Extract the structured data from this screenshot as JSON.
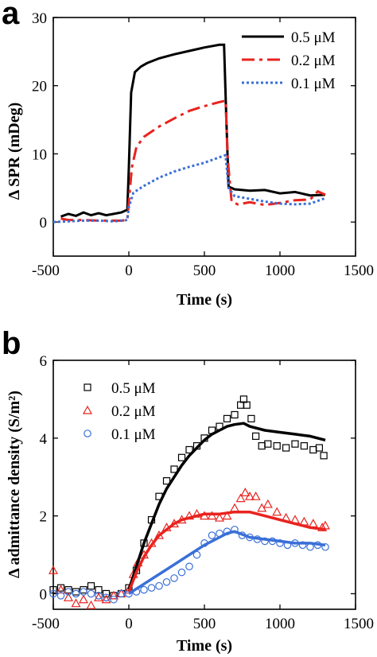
{
  "chart_data": [
    {
      "panel": "a",
      "type": "line",
      "xlabel": "Time (s)",
      "ylabel": "Δ SPR (mDeg)",
      "xlim": [
        -500,
        1500
      ],
      "ylim": [
        -5,
        30
      ],
      "xticks": [
        -500,
        0,
        500,
        1000,
        1500
      ],
      "yticks": [
        0,
        10,
        20,
        30
      ],
      "legend_position": "top-right",
      "series": [
        {
          "name": "0.5 μM",
          "color": "#000000",
          "style": "solid",
          "x": [
            -450,
            -400,
            -350,
            -300,
            -250,
            -200,
            -150,
            -100,
            -50,
            -10,
            0,
            15,
            40,
            80,
            120,
            200,
            300,
            400,
            500,
            600,
            630,
            645,
            660,
            700,
            800,
            900,
            1000,
            1100,
            1200,
            1300
          ],
          "y": [
            0.8,
            1.2,
            0.9,
            1.4,
            1.0,
            1.3,
            1.0,
            1.2,
            1.4,
            1.8,
            8,
            19,
            22,
            22.8,
            23.3,
            24,
            24.6,
            25.1,
            25.6,
            26.0,
            26.0,
            15,
            5.2,
            4.8,
            4.6,
            4.7,
            4.2,
            4.4,
            3.9,
            4.0
          ]
        },
        {
          "name": "0.2 μM",
          "color": "#e8231f",
          "style": "dashdot",
          "x": [
            -450,
            -400,
            -300,
            -200,
            -100,
            -50,
            -10,
            0,
            20,
            50,
            100,
            200,
            300,
            400,
            500,
            600,
            640,
            655,
            680,
            720,
            800,
            900,
            1000,
            1100,
            1200,
            1250,
            1300
          ],
          "y": [
            0.5,
            0.3,
            0.3,
            0.2,
            0.2,
            0.2,
            0.3,
            3,
            8,
            11,
            12.5,
            14,
            15.2,
            16.3,
            17.0,
            17.6,
            17.8,
            9,
            3.0,
            2.6,
            2.9,
            2.5,
            2.8,
            3.2,
            3.3,
            4.5,
            4.0
          ]
        },
        {
          "name": "0.1 μM",
          "color": "#3a6fd8",
          "style": "dotted",
          "x": [
            -500,
            -400,
            -300,
            -200,
            -100,
            -50,
            -10,
            0,
            30,
            100,
            200,
            300,
            400,
            500,
            600,
            640,
            660,
            700,
            800,
            900,
            1000,
            1100,
            1200,
            1300
          ],
          "y": [
            0.0,
            0.1,
            0.2,
            0.2,
            0.1,
            0.2,
            0.3,
            2.2,
            4.3,
            5.3,
            6.5,
            7.4,
            8.1,
            8.7,
            9.5,
            9.8,
            5.0,
            3.8,
            3.4,
            3.0,
            2.7,
            2.6,
            2.7,
            3.5
          ]
        }
      ]
    },
    {
      "panel": "b",
      "type": "scatter",
      "xlabel": "Time (s)",
      "ylabel": "Δ admittance density (S/m²)",
      "xlim": [
        -500,
        1500
      ],
      "ylim": [
        -0.4,
        6
      ],
      "xticks": [
        -500,
        0,
        500,
        1000,
        1500
      ],
      "yticks": [
        0,
        2,
        4,
        6
      ],
      "legend_position": "top-left",
      "series": [
        {
          "name": "0.5 μM",
          "color": "#000000",
          "marker": "square",
          "points_x": [
            -500,
            -450,
            -400,
            -350,
            -300,
            -250,
            -200,
            -150,
            -100,
            -50,
            0,
            50,
            100,
            150,
            200,
            250,
            300,
            350,
            400,
            450,
            500,
            550,
            600,
            650,
            700,
            740,
            760,
            780,
            810,
            840,
            880,
            920,
            980,
            1040,
            1100,
            1160,
            1220,
            1260,
            1290
          ],
          "points_y": [
            0.1,
            0.15,
            0.1,
            0.05,
            0.1,
            0.2,
            0.1,
            0.0,
            -0.05,
            0.0,
            0.15,
            0.6,
            1.3,
            1.9,
            2.5,
            2.9,
            3.2,
            3.5,
            3.7,
            3.8,
            4.0,
            4.2,
            4.3,
            4.5,
            4.6,
            4.85,
            5.0,
            4.85,
            4.5,
            4.05,
            3.8,
            3.85,
            3.8,
            3.75,
            3.85,
            3.8,
            3.7,
            3.75,
            3.55
          ],
          "fit_x": [
            0,
            50,
            100,
            150,
            200,
            250,
            300,
            350,
            400,
            450,
            500,
            550,
            600,
            650,
            700,
            760,
            800,
            900,
            1000,
            1100,
            1200,
            1300
          ],
          "fit_y": [
            0.1,
            0.7,
            1.3,
            1.8,
            2.3,
            2.7,
            3.0,
            3.3,
            3.55,
            3.75,
            3.95,
            4.1,
            4.2,
            4.3,
            4.35,
            4.38,
            4.3,
            4.2,
            4.15,
            4.1,
            4.05,
            3.95
          ]
        },
        {
          "name": "0.2 μM",
          "color": "#e8231f",
          "marker": "triangle",
          "points_x": [
            -500,
            -450,
            -400,
            -350,
            -300,
            -250,
            -200,
            -150,
            -100,
            -50,
            0,
            30,
            60,
            100,
            150,
            200,
            250,
            300,
            350,
            400,
            450,
            500,
            550,
            600,
            650,
            700,
            740,
            770,
            800,
            840,
            880,
            920,
            980,
            1040,
            1100,
            1160,
            1220,
            1280,
            1300
          ],
          "points_y": [
            0.6,
            0.1,
            -0.1,
            -0.25,
            -0.15,
            -0.3,
            -0.1,
            -0.15,
            -0.05,
            0.0,
            0.1,
            0.5,
            0.8,
            1.0,
            1.3,
            1.5,
            1.7,
            1.8,
            1.9,
            2.0,
            2.05,
            2.0,
            2.0,
            1.95,
            2.0,
            2.2,
            2.45,
            2.6,
            2.5,
            2.5,
            2.2,
            2.3,
            2.1,
            1.95,
            1.9,
            1.85,
            1.8,
            1.7,
            1.75
          ],
          "fit_x": [
            0,
            50,
            100,
            150,
            200,
            250,
            300,
            350,
            400,
            450,
            500,
            600,
            700,
            800,
            900,
            1000,
            1100,
            1200,
            1300
          ],
          "fit_y": [
            0.05,
            0.55,
            0.95,
            1.25,
            1.5,
            1.65,
            1.8,
            1.9,
            1.95,
            2.0,
            2.05,
            2.05,
            2.1,
            2.1,
            2.0,
            1.9,
            1.8,
            1.7,
            1.65
          ]
        },
        {
          "name": "0.1 μM",
          "color": "#3a6fd8",
          "marker": "circle",
          "points_x": [
            -500,
            -450,
            -400,
            -350,
            -300,
            -250,
            -200,
            -150,
            -100,
            -50,
            0,
            50,
            100,
            150,
            200,
            250,
            300,
            350,
            400,
            450,
            500,
            550,
            600,
            650,
            700,
            750,
            800,
            850,
            900,
            950,
            1000,
            1050,
            1100,
            1150,
            1200,
            1250,
            1300
          ],
          "points_y": [
            0.0,
            -0.05,
            0.05,
            0.0,
            0.05,
            0.0,
            -0.05,
            -0.1,
            -0.15,
            0.0,
            0.0,
            0.05,
            0.1,
            0.15,
            0.2,
            0.3,
            0.4,
            0.55,
            0.7,
            1.0,
            1.3,
            1.5,
            1.55,
            1.6,
            1.65,
            1.5,
            1.45,
            1.4,
            1.35,
            1.35,
            1.3,
            1.25,
            1.3,
            1.25,
            1.2,
            1.25,
            1.2
          ],
          "fit_x": [
            0,
            100,
            200,
            300,
            400,
            500,
            600,
            650,
            700,
            800,
            900,
            1000,
            1100,
            1200,
            1300
          ],
          "fit_y": [
            0.0,
            0.25,
            0.5,
            0.75,
            1.0,
            1.25,
            1.45,
            1.55,
            1.6,
            1.45,
            1.4,
            1.35,
            1.3,
            1.3,
            1.25
          ]
        }
      ]
    }
  ]
}
